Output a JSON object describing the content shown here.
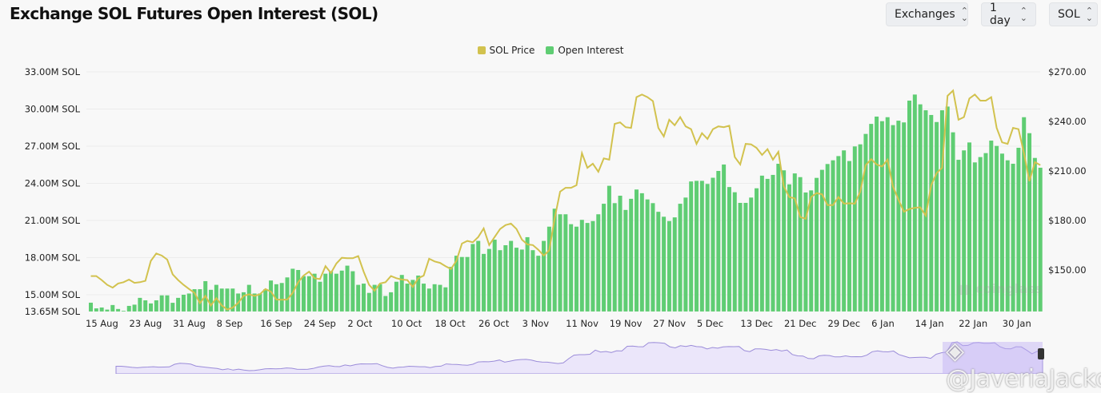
{
  "header": {
    "title": "Exchange SOL Futures Open Interest (SOL)",
    "selectors": [
      {
        "label": "Exchanges"
      },
      {
        "label": "1 day"
      },
      {
        "label": "SOL"
      }
    ]
  },
  "watermarks": {
    "brand": "coinglass",
    "author": "@JaveriaJacko"
  },
  "chart_data": {
    "type": "bar+line",
    "title": "Exchange SOL Futures Open Interest (SOL)",
    "legend_position": "top-center",
    "grid": true,
    "colors": {
      "SOL Price": "#d2c24e",
      "Open Interest": "#5fcd73"
    },
    "x_start": "15 Aug",
    "x_end": "5 Feb",
    "x_ticks": [
      "15 Aug",
      "23 Aug",
      "31 Aug",
      "8 Sep",
      "16 Sep",
      "24 Sep",
      "2 Oct",
      "10 Oct",
      "18 Oct",
      "26 Oct",
      "3 Nov",
      "11 Nov",
      "19 Nov",
      "27 Nov",
      "5 Dec",
      "13 Dec",
      "21 Dec",
      "29 Dec",
      "6 Jan",
      "14 Jan",
      "22 Jan",
      "30 Jan"
    ],
    "y_left": {
      "ticks": [
        "33.00M SOL",
        "30.00M SOL",
        "27.00M SOL",
        "24.00M SOL",
        "21.00M SOL",
        "18.00M SOL",
        "15.00M SOL",
        "13.65M SOL"
      ],
      "range": [
        13.65,
        33
      ],
      "unit": "M SOL"
    },
    "y_right": {
      "ticks": [
        "$270.00",
        "$240.00",
        "$210.00",
        "$180.00",
        "$150.00"
      ],
      "range": [
        125.3,
        270
      ],
      "unit": "USD"
    },
    "series": [
      {
        "name": "Open Interest",
        "type": "bar",
        "axis": "left",
        "values": [
          14.36,
          13.9,
          13.97,
          13.8,
          14.17,
          13.85,
          13.7,
          14.1,
          14.2,
          14.75,
          14.55,
          14.3,
          14.55,
          14.95,
          14.95,
          14.35,
          14.75,
          15.0,
          15.1,
          15.45,
          15.45,
          16.1,
          15.4,
          15.8,
          15.5,
          15.5,
          15.5,
          15.1,
          15.2,
          15.8,
          15.1,
          15.1,
          15.45,
          16.15,
          15.85,
          15.95,
          16.4,
          17.1,
          17.0,
          16.5,
          16.5,
          16.7,
          16.05,
          16.7,
          16.9,
          16.7,
          16.95,
          17.35,
          16.9,
          15.8,
          15.9,
          15.15,
          15.8,
          15.85,
          14.9,
          15.2,
          16.05,
          16.6,
          15.9,
          16.2,
          16.55,
          15.9,
          15.5,
          15.85,
          15.8,
          15.6,
          17.25,
          18.15,
          18.05,
          18.05,
          19.1,
          19.35,
          18.3,
          18.7,
          19.45,
          18.6,
          19.0,
          19.35,
          18.8,
          18.65,
          19.65,
          18.6,
          18.15,
          19.35,
          20.5,
          21.95,
          21.5,
          21.5,
          20.7,
          20.5,
          21.05,
          20.8,
          20.95,
          21.5,
          22.35,
          23.8,
          22.4,
          23.0,
          21.85,
          22.75,
          23.5,
          23.2,
          22.7,
          22.4,
          21.7,
          21.3,
          20.95,
          21.25,
          22.35,
          22.85,
          24.15,
          24.2,
          24.2,
          23.95,
          24.45,
          25.0,
          25.52,
          23.7,
          23.28,
          22.42,
          22.42,
          22.85,
          23.6,
          24.62,
          24.36,
          24.68,
          25.58,
          25.05,
          23.92,
          24.8,
          24.5,
          23.26,
          23.43,
          24.44,
          25.09,
          25.56,
          25.86,
          26.2,
          26.66,
          25.8,
          26.98,
          27.15,
          27.99,
          28.8,
          29.39,
          29.02,
          29.34,
          28.7,
          29.06,
          28.92,
          30.68,
          31.17,
          30.38,
          29.9,
          29.52,
          28.95,
          29.9,
          30.2,
          28.12,
          25.9,
          26.66,
          27.3,
          25.69,
          26.12,
          26.44,
          27.45,
          27.02,
          26.4,
          25.86,
          25.58,
          26.87,
          29.34,
          28.05,
          26.05,
          25.26
        ]
      },
      {
        "name": "SOL Price",
        "type": "line",
        "axis": "right",
        "values": [
          146.3,
          146.3,
          143.9,
          141,
          139.3,
          141.8,
          142.6,
          144.2,
          142.2,
          142.6,
          143.4,
          155.5,
          160,
          158.7,
          156.3,
          147.4,
          143.9,
          141,
          138.5,
          136.1,
          129.9,
          134.3,
          128.5,
          132.9,
          128.5,
          126,
          127.2,
          130,
          134.3,
          135.3,
          134.3,
          135.3,
          138.5,
          136.9,
          132.1,
          132,
          132.1,
          136.1,
          142.6,
          146.6,
          149,
          145,
          144.5,
          152.3,
          148.2,
          153.9,
          157.4,
          157.1,
          157.1,
          158.4,
          149,
          141,
          137.4,
          141.8,
          142.6,
          146.3,
          145,
          144.2,
          143.9,
          139.7,
          145,
          146.6,
          156.8,
          155.2,
          154.3,
          152.3,
          150.6,
          155.5,
          166,
          167.6,
          166.8,
          170,
          175.2,
          165.1,
          170,
          174.8,
          177.2,
          178.1,
          174.8,
          168.4,
          165.5,
          165.1,
          162.3,
          158.7,
          161.9,
          181.3,
          197.4,
          199.8,
          199.8,
          201.4,
          220.8,
          211.9,
          214.4,
          209.5,
          217.6,
          216.8,
          238.5,
          239.4,
          236.5,
          236.1,
          254.7,
          256.3,
          254.7,
          252.3,
          236.1,
          230.9,
          241,
          237.7,
          242.6,
          237,
          235.3,
          226.4,
          232.9,
          229.4,
          235.3,
          237,
          236.5,
          237.4,
          218.4,
          213.9,
          226.4,
          226.1,
          224,
          219.7,
          223.2,
          216.8,
          221.6,
          200.6,
          194.2,
          193.4,
          182.1,
          181,
          194.2,
          196.6,
          195.8,
          189.3,
          189.3,
          194.2,
          190.2,
          190.4,
          190.2,
          197.4,
          213.5,
          217.1,
          213.9,
          212.7,
          216.8,
          200.6,
          192.6,
          185.3,
          186.9,
          187.7,
          188,
          182.9,
          201.4,
          208.7,
          211.9,
          255.5,
          258.7,
          241,
          242.6,
          253.9,
          256.3,
          252.6,
          252.6,
          254.7,
          236.1,
          227.3,
          226.4,
          236.1,
          235.3,
          220.8,
          203.8,
          215.3,
          213.5
        ]
      }
    ]
  }
}
